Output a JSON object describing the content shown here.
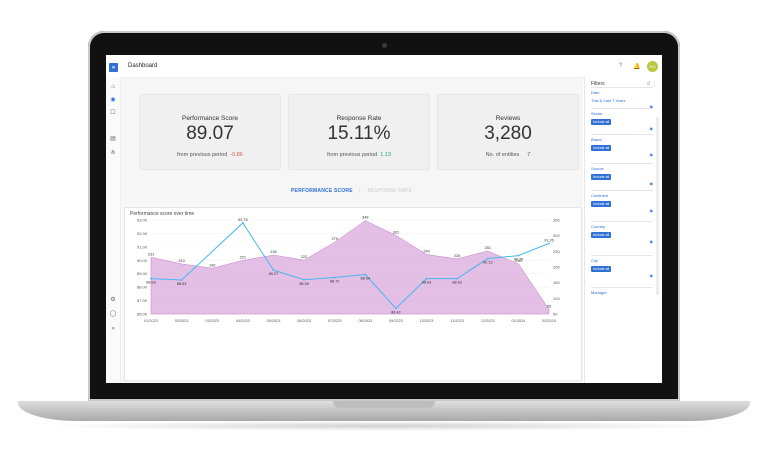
{
  "app": {
    "title": "Dashboard",
    "avatar": "RG"
  },
  "icons": [
    "help-icon",
    "bell-icon",
    "home-icon",
    "dashboard-icon",
    "chat-icon",
    "building-icon",
    "network-icon",
    "settings-icon",
    "user-icon",
    "expand-icon"
  ],
  "cards": [
    {
      "label": "Performance Score",
      "value": "89.07",
      "sub": "from previous period",
      "delta": "-0.86"
    },
    {
      "label": "Response Rate",
      "value": "15.11%",
      "sub": "from previous period",
      "delta": "1.13"
    },
    {
      "label": "Reviews",
      "value": "3,280",
      "sub": "No. of entities",
      "delta": "7"
    }
  ],
  "tabs": {
    "active": "PERFORMANCE SCORE",
    "inactive": "RESPONSE RATE",
    "separator": "|"
  },
  "chart_title": "Performance score over time",
  "chart_data": {
    "type": "line",
    "categories": [
      "01/2023",
      "02/2023",
      "03/2023",
      "04/2023",
      "05/2023",
      "06/2023",
      "07/2023",
      "08/2023",
      "09/2023",
      "10/2023",
      "11/2023",
      "12/2023",
      "01/2024",
      "02/2024"
    ],
    "series": [
      {
        "values": [
          88.63,
          88.53,
          null,
          92.78,
          89.27,
          88.55,
          88.72,
          88.94,
          86.42,
          88.63,
          88.63,
          90.13,
          90.35,
          91.26
        ]
      },
      {
        "values": [
          231,
          210,
          196,
          221,
          238,
          222,
          279,
          348,
          301,
          240,
          226,
          251,
          210,
          65
        ]
      }
    ],
    "ylim_left": [
      86,
      93
    ],
    "ylim_right": [
      50,
      350
    ],
    "yticks_left": [
      "86.00",
      "87.00",
      "88.00",
      "89.00",
      "90.00",
      "91.00",
      "92.00",
      "93.00"
    ],
    "yticks_right": [
      "50",
      "100",
      "150",
      "200",
      "250",
      "300",
      "350"
    ],
    "colors": {
      "line": "#49b6f0",
      "area": "#d9a8dc"
    }
  },
  "filters": {
    "title": "Filters",
    "items": [
      {
        "name": "Date",
        "value": "This & Last 7 Years"
      },
      {
        "name": "Sector",
        "button": "Include all"
      },
      {
        "name": "Brand",
        "button": "Include all"
      },
      {
        "name": "Source",
        "button": "Include all"
      },
      {
        "name": "Continent",
        "button": "Include all"
      },
      {
        "name": "Country",
        "button": "Include all"
      },
      {
        "name": "City",
        "button": "Include all"
      },
      {
        "name": "Manager"
      }
    ]
  }
}
